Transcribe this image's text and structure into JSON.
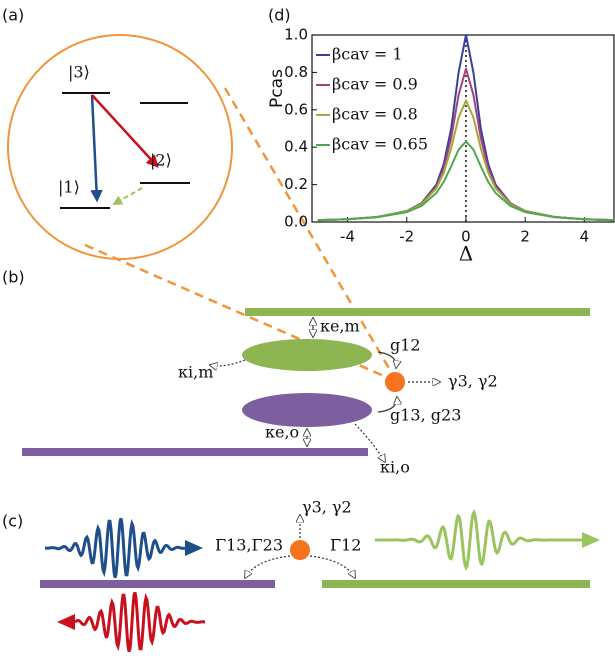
{
  "panels": {
    "a": "(a)",
    "b": "(b)",
    "c": "(c)",
    "d": "(d)"
  },
  "levels": {
    "top": "|3⟩",
    "bottom": "|1⟩",
    "middle": "|2⟩"
  },
  "panel_b": {
    "kappa_em": "κe,m",
    "g12": "g12",
    "kappa_im": "κi,m",
    "gammas": "γ3, γ2",
    "g13_g23": "g13, g23",
    "kappa_eo": "κe,o",
    "kappa_io": "κi,o"
  },
  "panel_c": {
    "gammas": "γ3, γ2",
    "Gamma_left": "Γ13,Γ23",
    "Gamma_right": "Γ12"
  },
  "chart_data": {
    "type": "line",
    "x_label": "Δ",
    "y_label": "Pcas",
    "x": [
      -5,
      -4,
      -3,
      -2,
      -1.5,
      -1,
      -0.75,
      -0.5,
      -0.25,
      0,
      0.25,
      0.5,
      0.75,
      1,
      1.5,
      2,
      3,
      4,
      5
    ],
    "series": [
      {
        "name": "βcav = 1",
        "color": "#3b3f9c",
        "values": [
          0.01,
          0.015,
          0.027,
          0.059,
          0.1,
          0.2,
          0.31,
          0.5,
          0.8,
          1.0,
          0.8,
          0.5,
          0.31,
          0.2,
          0.1,
          0.059,
          0.027,
          0.015,
          0.01
        ]
      },
      {
        "name": "βcav = 0.9",
        "color": "#a0457e",
        "values": [
          0.01,
          0.015,
          0.027,
          0.058,
          0.097,
          0.19,
          0.287,
          0.449,
          0.68,
          0.82,
          0.68,
          0.449,
          0.287,
          0.19,
          0.097,
          0.058,
          0.027,
          0.015,
          0.01
        ]
      },
      {
        "name": "βcav = 0.8",
        "color": "#a6a63c",
        "values": [
          0.01,
          0.015,
          0.027,
          0.057,
          0.095,
          0.18,
          0.264,
          0.394,
          0.559,
          0.65,
          0.559,
          0.394,
          0.264,
          0.18,
          0.095,
          0.057,
          0.027,
          0.015,
          0.01
        ]
      },
      {
        "name": "βcav = 0.65",
        "color": "#4fa84f",
        "values": [
          0.0095,
          0.0146,
          0.0253,
          0.053,
          0.086,
          0.155,
          0.215,
          0.298,
          0.387,
          0.43,
          0.387,
          0.298,
          0.215,
          0.155,
          0.086,
          0.053,
          0.0253,
          0.0146,
          0.0095
        ]
      }
    ],
    "xlim": [
      -5.2,
      5
    ],
    "ylim": [
      0,
      1
    ],
    "xticks": [
      -4,
      -2,
      0,
      2,
      4
    ],
    "yticks": [
      {
        "value": 0,
        "label": "0.0"
      },
      0.2,
      0.4,
      0.6,
      0.8,
      {
        "value": 1,
        "label": "1.0"
      }
    ],
    "legend": "upper left"
  }
}
